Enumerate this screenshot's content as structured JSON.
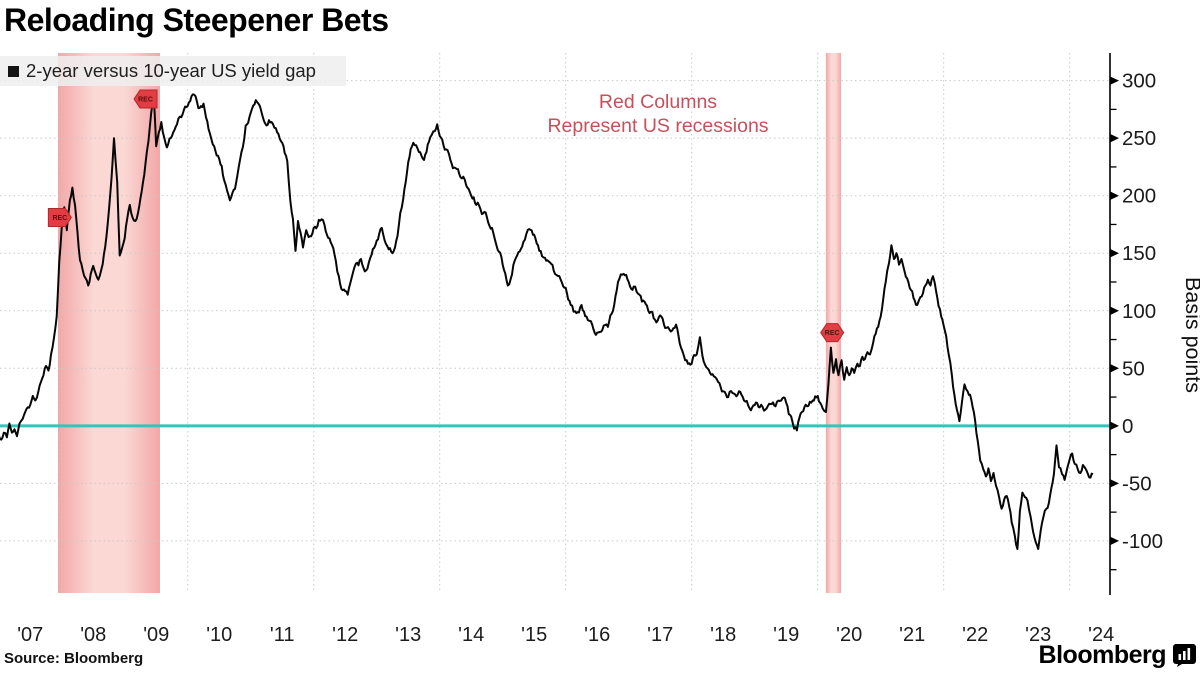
{
  "header": {
    "title": "Reloading Steepener Bets"
  },
  "legend": {
    "swatch": "■",
    "label": "2-year versus 10-year US yield gap"
  },
  "annotation": {
    "line1": "Red Columns",
    "line2": "Represent US recessions"
  },
  "footer": {
    "source": "Source: Bloomberg",
    "logo": "Bloomberg"
  },
  "colors": {
    "line": "#070707",
    "zero_line": "#35c4ba",
    "band_edge": "#f2a7a7",
    "band_center": "#fbd8d4",
    "flag_fill": "#e23d42",
    "flag_border": "#b5262b",
    "flag_text": "#581012",
    "grid": "#c9c9c9",
    "axis": "#000000",
    "tick_label": "#1c1c1c",
    "annotation_red": "#c8505a"
  },
  "chart_data": {
    "type": "line",
    "title": "Reloading Steepener Bets",
    "series_name": "2-year versus 10-year US yield gap",
    "ylabel": "Basis points",
    "unit": "basis points",
    "grid": true,
    "legend_position": "top-left",
    "x_range": [
      2007.02,
      2024.64
    ],
    "ylim": [
      -147,
      324
    ],
    "y_axis": {
      "ticks": [
        300,
        250,
        200,
        150,
        100,
        50,
        0,
        -50,
        -100
      ],
      "minor_step": 25
    },
    "x_axis": {
      "years": [
        2007,
        2008,
        2009,
        2010,
        2011,
        2012,
        2013,
        2014,
        2015,
        2016,
        2017,
        2018,
        2019,
        2020,
        2021,
        2022,
        2023,
        2024
      ],
      "labels": [
        "'07",
        "'08",
        "'09",
        "'10",
        "'11",
        "'12",
        "'13",
        "'14",
        "'15",
        "'16",
        "'17",
        "'18",
        "'19",
        "'20",
        "'21",
        "'22",
        "'23",
        "'24"
      ],
      "gridline_years": [
        2008,
        2010,
        2012,
        2014,
        2016,
        2018,
        2020,
        2022,
        2024
      ]
    },
    "zero_line": {
      "value": 0
    },
    "recessions": [
      {
        "start": 2007.94,
        "end": 2009.56
      },
      {
        "start": 2020.13,
        "end": 2020.37
      }
    ],
    "rec_flags": [
      {
        "year": 2007.97,
        "bp": 181,
        "dir": "right",
        "label": "REC"
      },
      {
        "year": 2009.33,
        "bp": 284,
        "dir": "left",
        "label": "REC"
      },
      {
        "year": 2020.23,
        "bp": 81,
        "dir": "both",
        "label": "REC"
      }
    ],
    "points": [
      [
        2007.0,
        -8
      ],
      [
        2007.04,
        -12
      ],
      [
        2007.08,
        -6
      ],
      [
        2007.13,
        -10
      ],
      [
        2007.17,
        2
      ],
      [
        2007.21,
        -6
      ],
      [
        2007.25,
        -3
      ],
      [
        2007.29,
        -9
      ],
      [
        2007.33,
        2
      ],
      [
        2007.38,
        6
      ],
      [
        2007.42,
        12
      ],
      [
        2007.46,
        16
      ],
      [
        2007.5,
        18
      ],
      [
        2007.54,
        26
      ],
      [
        2007.58,
        22
      ],
      [
        2007.63,
        30
      ],
      [
        2007.67,
        38
      ],
      [
        2007.71,
        44
      ],
      [
        2007.75,
        52
      ],
      [
        2007.79,
        48
      ],
      [
        2007.83,
        62
      ],
      [
        2007.88,
        78
      ],
      [
        2007.92,
        95
      ],
      [
        2007.96,
        142
      ],
      [
        2008.0,
        172
      ],
      [
        2008.04,
        190
      ],
      [
        2008.08,
        170
      ],
      [
        2008.13,
        196
      ],
      [
        2008.17,
        207
      ],
      [
        2008.21,
        192
      ],
      [
        2008.25,
        168
      ],
      [
        2008.29,
        144
      ],
      [
        2008.33,
        136
      ],
      [
        2008.38,
        128
      ],
      [
        2008.42,
        122
      ],
      [
        2008.46,
        132
      ],
      [
        2008.5,
        139
      ],
      [
        2008.54,
        132
      ],
      [
        2008.58,
        127
      ],
      [
        2008.63,
        136
      ],
      [
        2008.67,
        149
      ],
      [
        2008.71,
        165
      ],
      [
        2008.75,
        188
      ],
      [
        2008.79,
        215
      ],
      [
        2008.83,
        250
      ],
      [
        2008.88,
        212
      ],
      [
        2008.92,
        148
      ],
      [
        2008.96,
        155
      ],
      [
        2009.0,
        163
      ],
      [
        2009.08,
        192
      ],
      [
        2009.17,
        178
      ],
      [
        2009.25,
        198
      ],
      [
        2009.33,
        228
      ],
      [
        2009.42,
        272
      ],
      [
        2009.46,
        288
      ],
      [
        2009.5,
        243
      ],
      [
        2009.54,
        255
      ],
      [
        2009.58,
        264
      ],
      [
        2009.63,
        250
      ],
      [
        2009.67,
        242
      ],
      [
        2009.75,
        252
      ],
      [
        2009.83,
        262
      ],
      [
        2009.92,
        271
      ],
      [
        2010.0,
        278
      ],
      [
        2010.08,
        288
      ],
      [
        2010.17,
        276
      ],
      [
        2010.25,
        280
      ],
      [
        2010.33,
        258
      ],
      [
        2010.42,
        243
      ],
      [
        2010.5,
        232
      ],
      [
        2010.58,
        213
      ],
      [
        2010.67,
        196
      ],
      [
        2010.75,
        206
      ],
      [
        2010.83,
        231
      ],
      [
        2010.92,
        261
      ],
      [
        2011.0,
        272
      ],
      [
        2011.08,
        283
      ],
      [
        2011.17,
        273
      ],
      [
        2011.25,
        261
      ],
      [
        2011.33,
        264
      ],
      [
        2011.42,
        255
      ],
      [
        2011.5,
        246
      ],
      [
        2011.58,
        230
      ],
      [
        2011.63,
        195
      ],
      [
        2011.67,
        180
      ],
      [
        2011.71,
        152
      ],
      [
        2011.75,
        178
      ],
      [
        2011.79,
        168
      ],
      [
        2011.83,
        155
      ],
      [
        2011.88,
        170
      ],
      [
        2011.92,
        164
      ],
      [
        2012.0,
        172
      ],
      [
        2012.08,
        179
      ],
      [
        2012.17,
        175
      ],
      [
        2012.25,
        163
      ],
      [
        2012.33,
        149
      ],
      [
        2012.42,
        123
      ],
      [
        2012.5,
        117
      ],
      [
        2012.54,
        114
      ],
      [
        2012.58,
        124
      ],
      [
        2012.67,
        141
      ],
      [
        2012.75,
        145
      ],
      [
        2012.83,
        135
      ],
      [
        2012.92,
        149
      ],
      [
        2013.0,
        161
      ],
      [
        2013.08,
        172
      ],
      [
        2013.17,
        156
      ],
      [
        2013.25,
        150
      ],
      [
        2013.33,
        165
      ],
      [
        2013.42,
        197
      ],
      [
        2013.5,
        229
      ],
      [
        2013.58,
        246
      ],
      [
        2013.67,
        238
      ],
      [
        2013.75,
        231
      ],
      [
        2013.83,
        247
      ],
      [
        2013.92,
        256
      ],
      [
        2013.96,
        262
      ],
      [
        2014.0,
        252
      ],
      [
        2014.08,
        240
      ],
      [
        2014.17,
        231
      ],
      [
        2014.25,
        224
      ],
      [
        2014.33,
        216
      ],
      [
        2014.42,
        209
      ],
      [
        2014.5,
        200
      ],
      [
        2014.58,
        192
      ],
      [
        2014.67,
        184
      ],
      [
        2014.75,
        181
      ],
      [
        2014.83,
        172
      ],
      [
        2014.92,
        153
      ],
      [
        2015.0,
        140
      ],
      [
        2015.08,
        122
      ],
      [
        2015.17,
        140
      ],
      [
        2015.25,
        151
      ],
      [
        2015.33,
        160
      ],
      [
        2015.42,
        171
      ],
      [
        2015.5,
        166
      ],
      [
        2015.58,
        152
      ],
      [
        2015.67,
        146
      ],
      [
        2015.75,
        142
      ],
      [
        2015.83,
        132
      ],
      [
        2015.92,
        127
      ],
      [
        2016.0,
        120
      ],
      [
        2016.08,
        105
      ],
      [
        2016.17,
        98
      ],
      [
        2016.25,
        105
      ],
      [
        2016.33,
        95
      ],
      [
        2016.42,
        88
      ],
      [
        2016.5,
        81
      ],
      [
        2016.58,
        83
      ],
      [
        2016.67,
        86
      ],
      [
        2016.75,
        100
      ],
      [
        2016.83,
        125
      ],
      [
        2016.92,
        132
      ],
      [
        2017.0,
        125
      ],
      [
        2017.08,
        121
      ],
      [
        2017.17,
        114
      ],
      [
        2017.25,
        108
      ],
      [
        2017.33,
        98
      ],
      [
        2017.42,
        92
      ],
      [
        2017.5,
        96
      ],
      [
        2017.58,
        85
      ],
      [
        2017.67,
        82
      ],
      [
        2017.75,
        88
      ],
      [
        2017.83,
        68
      ],
      [
        2017.92,
        57
      ],
      [
        2018.0,
        54
      ],
      [
        2018.08,
        62
      ],
      [
        2018.13,
        77
      ],
      [
        2018.17,
        61
      ],
      [
        2018.25,
        50
      ],
      [
        2018.33,
        45
      ],
      [
        2018.42,
        38
      ],
      [
        2018.5,
        30
      ],
      [
        2018.58,
        25
      ],
      [
        2018.67,
        28
      ],
      [
        2018.75,
        30
      ],
      [
        2018.83,
        22
      ],
      [
        2018.92,
        15
      ],
      [
        2019.0,
        18
      ],
      [
        2019.08,
        16
      ],
      [
        2019.17,
        14
      ],
      [
        2019.25,
        19
      ],
      [
        2019.33,
        17
      ],
      [
        2019.42,
        22
      ],
      [
        2019.5,
        20
      ],
      [
        2019.58,
        8
      ],
      [
        2019.67,
        -4
      ],
      [
        2019.75,
        12
      ],
      [
        2019.83,
        17
      ],
      [
        2019.92,
        22
      ],
      [
        2020.0,
        26
      ],
      [
        2020.04,
        20
      ],
      [
        2020.08,
        15
      ],
      [
        2020.13,
        12
      ],
      [
        2020.17,
        36
      ],
      [
        2020.21,
        68
      ],
      [
        2020.25,
        46
      ],
      [
        2020.29,
        58
      ],
      [
        2020.33,
        44
      ],
      [
        2020.38,
        57
      ],
      [
        2020.42,
        40
      ],
      [
        2020.46,
        51
      ],
      [
        2020.5,
        44
      ],
      [
        2020.54,
        50
      ],
      [
        2020.58,
        46
      ],
      [
        2020.63,
        54
      ],
      [
        2020.67,
        52
      ],
      [
        2020.71,
        60
      ],
      [
        2020.75,
        58
      ],
      [
        2020.79,
        64
      ],
      [
        2020.83,
        62
      ],
      [
        2020.88,
        72
      ],
      [
        2020.92,
        80
      ],
      [
        2020.96,
        86
      ],
      [
        2021.0,
        95
      ],
      [
        2021.04,
        110
      ],
      [
        2021.08,
        125
      ],
      [
        2021.13,
        141
      ],
      [
        2021.17,
        157
      ],
      [
        2021.21,
        145
      ],
      [
        2021.25,
        150
      ],
      [
        2021.29,
        140
      ],
      [
        2021.33,
        145
      ],
      [
        2021.38,
        134
      ],
      [
        2021.42,
        128
      ],
      [
        2021.46,
        120
      ],
      [
        2021.5,
        117
      ],
      [
        2021.54,
        109
      ],
      [
        2021.58,
        105
      ],
      [
        2021.63,
        112
      ],
      [
        2021.67,
        115
      ],
      [
        2021.71,
        122
      ],
      [
        2021.75,
        127
      ],
      [
        2021.79,
        122
      ],
      [
        2021.83,
        130
      ],
      [
        2021.88,
        117
      ],
      [
        2021.92,
        104
      ],
      [
        2021.96,
        95
      ],
      [
        2022.0,
        87
      ],
      [
        2022.04,
        78
      ],
      [
        2022.08,
        62
      ],
      [
        2022.13,
        44
      ],
      [
        2022.17,
        27
      ],
      [
        2022.21,
        14
      ],
      [
        2022.25,
        4
      ],
      [
        2022.29,
        21
      ],
      [
        2022.33,
        36
      ],
      [
        2022.38,
        30
      ],
      [
        2022.42,
        27
      ],
      [
        2022.46,
        16
      ],
      [
        2022.5,
        4
      ],
      [
        2022.54,
        -13
      ],
      [
        2022.58,
        -30
      ],
      [
        2022.63,
        -38
      ],
      [
        2022.67,
        -44
      ],
      [
        2022.71,
        -37
      ],
      [
        2022.75,
        -48
      ],
      [
        2022.79,
        -41
      ],
      [
        2022.83,
        -52
      ],
      [
        2022.88,
        -62
      ],
      [
        2022.92,
        -72
      ],
      [
        2022.96,
        -64
      ],
      [
        2023.0,
        -61
      ],
      [
        2023.04,
        -70
      ],
      [
        2023.08,
        -84
      ],
      [
        2023.13,
        -96
      ],
      [
        2023.17,
        -107
      ],
      [
        2023.21,
        -74
      ],
      [
        2023.25,
        -58
      ],
      [
        2023.29,
        -62
      ],
      [
        2023.33,
        -65
      ],
      [
        2023.38,
        -79
      ],
      [
        2023.42,
        -92
      ],
      [
        2023.46,
        -101
      ],
      [
        2023.5,
        -107
      ],
      [
        2023.54,
        -91
      ],
      [
        2023.58,
        -80
      ],
      [
        2023.63,
        -72
      ],
      [
        2023.67,
        -67
      ],
      [
        2023.71,
        -54
      ],
      [
        2023.75,
        -42
      ],
      [
        2023.79,
        -17
      ],
      [
        2023.83,
        -36
      ],
      [
        2023.88,
        -42
      ],
      [
        2023.92,
        -47
      ],
      [
        2023.96,
        -37
      ],
      [
        2024.0,
        -29
      ],
      [
        2024.04,
        -24
      ],
      [
        2024.08,
        -33
      ],
      [
        2024.13,
        -38
      ],
      [
        2024.17,
        -41
      ],
      [
        2024.21,
        -34
      ],
      [
        2024.25,
        -37
      ],
      [
        2024.29,
        -42
      ],
      [
        2024.33,
        -45
      ],
      [
        2024.37,
        -42
      ]
    ]
  }
}
